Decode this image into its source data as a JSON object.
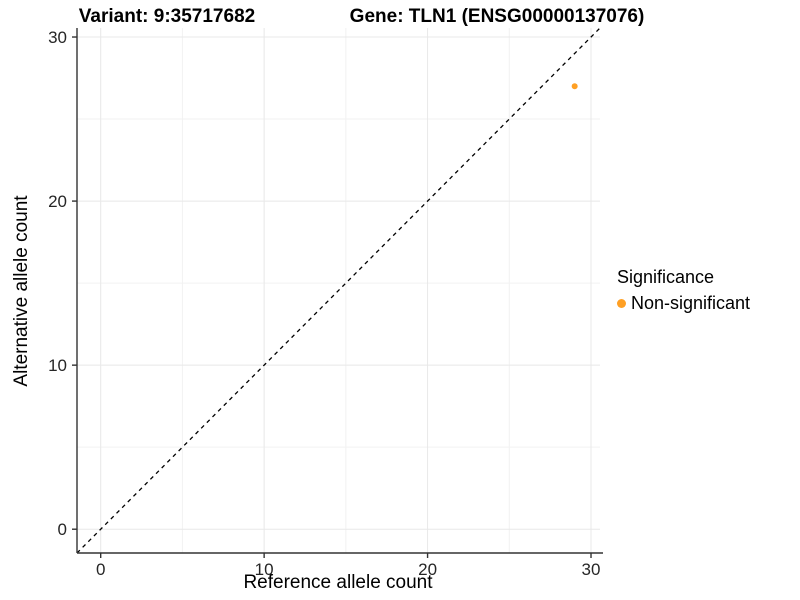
{
  "chart_data": {
    "type": "scatter",
    "titles": {
      "left": "Variant: 9:35717682",
      "right": "Gene: TLN1 (ENSG00000137076)"
    },
    "xlabel": "Reference allele count",
    "ylabel": "Alternative allele count",
    "xlim": [
      -1.45,
      30.55
    ],
    "ylim": [
      -1.45,
      30.55
    ],
    "x_major_ticks": [
      0,
      10,
      20,
      30
    ],
    "y_major_ticks": [
      0,
      10,
      20,
      30
    ],
    "x_minor_ticks": [
      5,
      15,
      25
    ],
    "y_minor_ticks": [
      5,
      15,
      25
    ],
    "grid": true,
    "identity_line": {
      "equation": "y = x",
      "style": "dashed",
      "color": "#000000"
    },
    "series": [
      {
        "name": "Non-significant",
        "color": "#FFA024",
        "points": [
          {
            "x": 29,
            "y": 27
          }
        ]
      }
    ],
    "legend": {
      "title": "Significance",
      "position": "right",
      "items": [
        {
          "label": "Non-significant",
          "color": "#FFA024"
        }
      ]
    },
    "colors": {
      "axis_line": "#333333",
      "tick_label": "#262626",
      "grid_major": "#e8e8e8",
      "grid_minor": "#f2f2f2",
      "background": "#ffffff"
    }
  }
}
